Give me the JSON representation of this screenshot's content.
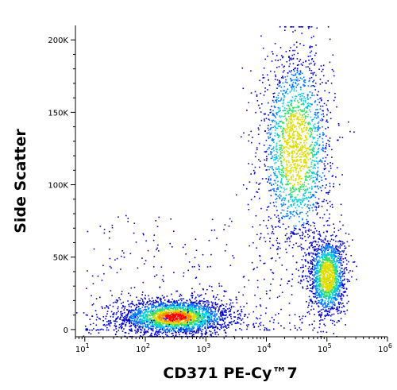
{
  "chart_data": {
    "type": "scatter",
    "plot_style": "density scatter (pseudocolor dot plot)",
    "xlabel": "CD371 PE-Cy™7",
    "ylabel": "Side Scatter",
    "x_scale": "log",
    "y_scale": "linear",
    "xlim": [
      7,
      1000000
    ],
    "ylim": [
      -5000,
      210000
    ],
    "x_ticks": [
      {
        "value": 10,
        "base": "10",
        "exp": "1"
      },
      {
        "value": 100,
        "base": "10",
        "exp": "2"
      },
      {
        "value": 1000,
        "base": "10",
        "exp": "3"
      },
      {
        "value": 10000,
        "base": "10",
        "exp": "4"
      },
      {
        "value": 100000,
        "base": "10",
        "exp": "5"
      },
      {
        "value": 1000000,
        "base": "10",
        "exp": "6"
      }
    ],
    "y_ticks": [
      {
        "value": 0,
        "label": "0"
      },
      {
        "value": 50000,
        "label": "50K"
      },
      {
        "value": 100000,
        "label": "100K"
      },
      {
        "value": 150000,
        "label": "150K"
      },
      {
        "value": 200000,
        "label": "200K"
      }
    ],
    "grid": false,
    "legend": "none",
    "density_colors": [
      "#0000cc",
      "#0077ff",
      "#00ccdd",
      "#33dd66",
      "#dddd00",
      "#ff8800",
      "#ff0000"
    ],
    "populations": [
      {
        "description": "CD371-negative population with low side scatter",
        "x_center": 300,
        "y_center": 9000,
        "x_range": [
          40,
          3000
        ],
        "y_range": [
          0,
          25000
        ],
        "relative_density": 1.0
      },
      {
        "description": "CD371-positive population with high side scatter",
        "x_center": 30000,
        "y_center": 125000,
        "x_range": [
          8000,
          120000
        ],
        "y_range": [
          70000,
          205000
        ],
        "relative_density": 0.8
      },
      {
        "description": "CD371-bright population with intermediate side scatter",
        "x_center": 100000,
        "y_center": 37000,
        "x_range": [
          50000,
          200000
        ],
        "y_range": [
          15000,
          70000
        ],
        "relative_density": 0.6
      },
      {
        "description": "sparse scatter of events between populations",
        "x_center": 3000,
        "y_center": 18000,
        "x_range": [
          10,
          60000
        ],
        "y_range": [
          0,
          80000
        ],
        "relative_density": 0.15
      }
    ]
  }
}
